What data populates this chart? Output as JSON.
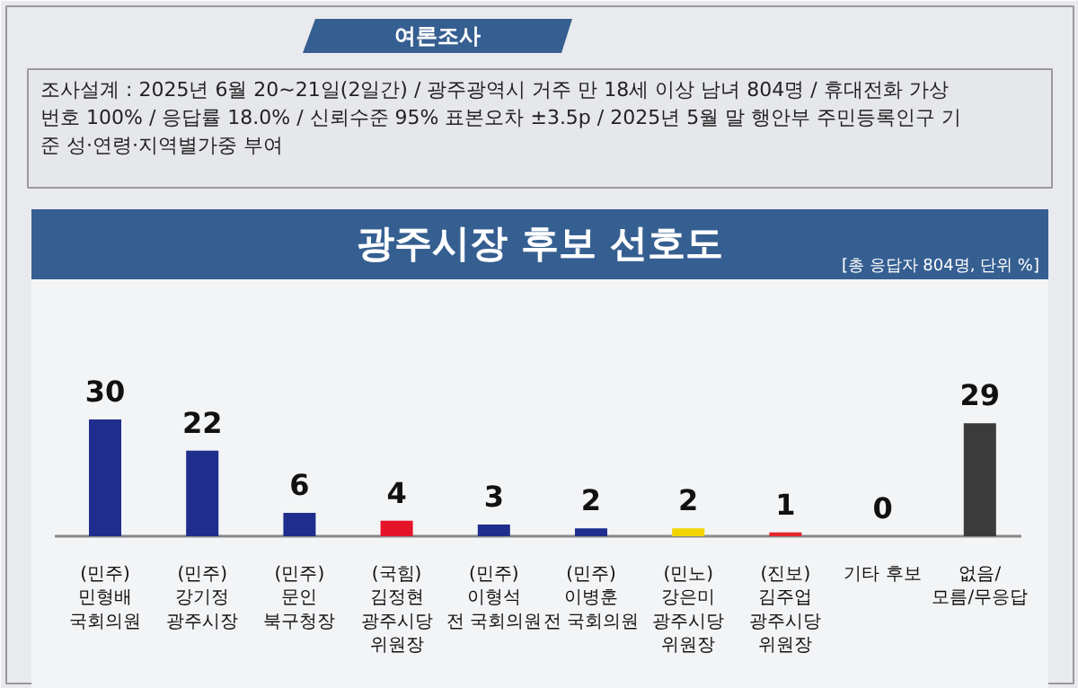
{
  "chart_data": {
    "type": "bar",
    "title": "광주시장 후보 선호도",
    "subtitle": "[총 응답자 804명, 단위 %]",
    "annotations": [
      "여론조사",
      "조사설계 : 2025년 6월 20~21일(2일간) / 광주광역시 거주 만 18세 이상 남녀 804명 / 휴대전화 가상\n번호 100% / 응답률 18.0% / 신뢰수준 95% 표본오차 ±3.5p / 2025년 5월 말 행안부 주민등록인구 기\n준 성·연령·지역별가중 부여"
    ],
    "categories": [
      "(민주)\n민형배\n국회의원",
      "(민주)\n강기정\n광주시장",
      "(민주)\n문인\n북구청장",
      "(국힘)\n김정현\n광주시당\n위원장",
      "(민주)\n이형석\n전 국회의원",
      "(민주)\n이병훈\n전 국회의원",
      "(민노)\n강은미\n광주시당\n위원장",
      "(진보)\n김주업\n광주시당\n위원장",
      "기타 후보",
      "없음/\n모름/무응답"
    ],
    "values": [
      30,
      22,
      6,
      4,
      3,
      2,
      2,
      1,
      0,
      29
    ],
    "colors": [
      "#1f2d8c",
      "#1f2d8c",
      "#1f2d8c",
      "#e5142b",
      "#1f2d8c",
      "#1f2d8c",
      "#f2d400",
      "#e3262e",
      "#a0a0a0",
      "#3b3b3b"
    ],
    "data_labels": true
  }
}
